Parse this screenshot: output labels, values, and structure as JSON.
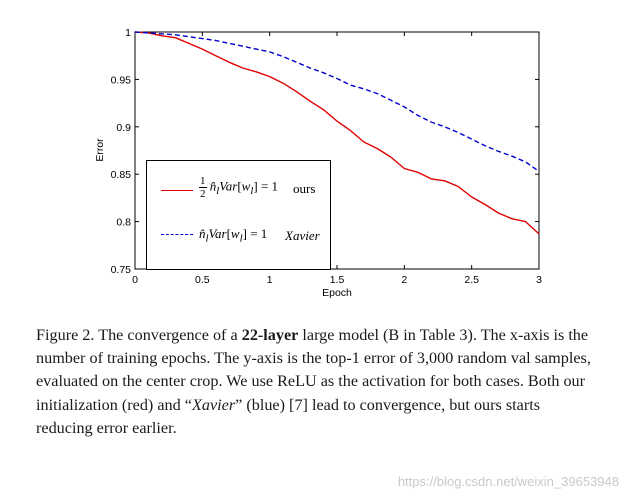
{
  "chart_data": {
    "type": "line",
    "title": "",
    "xlabel": "Epoch",
    "ylabel": "Error",
    "xlim": [
      0,
      3
    ],
    "ylim": [
      0.75,
      1
    ],
    "x_ticks": [
      "0",
      "0.5",
      "1",
      "1.5",
      "2",
      "2.5",
      "3"
    ],
    "y_ticks": [
      "0.75",
      "0.8",
      "0.85",
      "0.9",
      "0.95",
      "1"
    ],
    "grid": false,
    "legend_position": "lower-left",
    "series": [
      {
        "name": "ours",
        "color": "#e00000",
        "style": "solid",
        "x": [
          0,
          0.1,
          0.2,
          0.3,
          0.4,
          0.5,
          0.6,
          0.7,
          0.8,
          0.9,
          1.0,
          1.1,
          1.2,
          1.3,
          1.4,
          1.5,
          1.6,
          1.7,
          1.8,
          1.9,
          2.0,
          2.1,
          2.2,
          2.3,
          2.4,
          2.5,
          2.6,
          2.7,
          2.8,
          2.9,
          3.0
        ],
        "y": [
          1.0,
          0.999,
          0.996,
          0.994,
          0.988,
          0.982,
          0.975,
          0.968,
          0.962,
          0.958,
          0.953,
          0.946,
          0.937,
          0.927,
          0.918,
          0.906,
          0.896,
          0.884,
          0.877,
          0.868,
          0.856,
          0.852,
          0.845,
          0.843,
          0.837,
          0.826,
          0.818,
          0.809,
          0.803,
          0.8,
          0.787
        ]
      },
      {
        "name": "Xavier",
        "color": "#0000cc",
        "style": "dashed",
        "x": [
          0,
          0.1,
          0.2,
          0.3,
          0.4,
          0.5,
          0.6,
          0.7,
          0.8,
          0.9,
          1.0,
          1.1,
          1.2,
          1.3,
          1.4,
          1.5,
          1.6,
          1.7,
          1.8,
          1.9,
          2.0,
          2.1,
          2.2,
          2.3,
          2.4,
          2.5,
          2.6,
          2.7,
          2.8,
          2.9,
          3.0
        ],
        "y": [
          1.0,
          0.999,
          0.998,
          0.997,
          0.995,
          0.993,
          0.991,
          0.988,
          0.985,
          0.982,
          0.979,
          0.974,
          0.968,
          0.962,
          0.957,
          0.951,
          0.944,
          0.94,
          0.935,
          0.928,
          0.921,
          0.912,
          0.905,
          0.9,
          0.894,
          0.887,
          0.88,
          0.874,
          0.869,
          0.863,
          0.853
        ]
      }
    ],
    "legend": {
      "ours": {
        "frac_num": "1",
        "frac_den": "2",
        "hat": "n̂",
        "sub": "l",
        "var": "Var",
        "w": "w",
        "eq": "= 1",
        "tag": "ours"
      },
      "xavier": {
        "hat": "n̂",
        "sub": "l",
        "var": "Var",
        "w": "w",
        "eq": "= 1",
        "tag": "Xavier"
      }
    }
  },
  "caption": {
    "lead": "Figure 2. The convergence of a ",
    "bold": "22-layer",
    "mid": " large model (B in Table 3). The x-axis is the number of training epochs. The y-axis is the top-1 error of 3,000 random val samples, evaluated on the center crop. We use ReLU as the activation for both cases. Both our initialization (red) and “",
    "italic": "Xavier",
    "tail": "” (blue) [7] lead to convergence, but ours starts reducing error earlier."
  },
  "watermark": "https://blog.csdn.net/weixin_39653948"
}
